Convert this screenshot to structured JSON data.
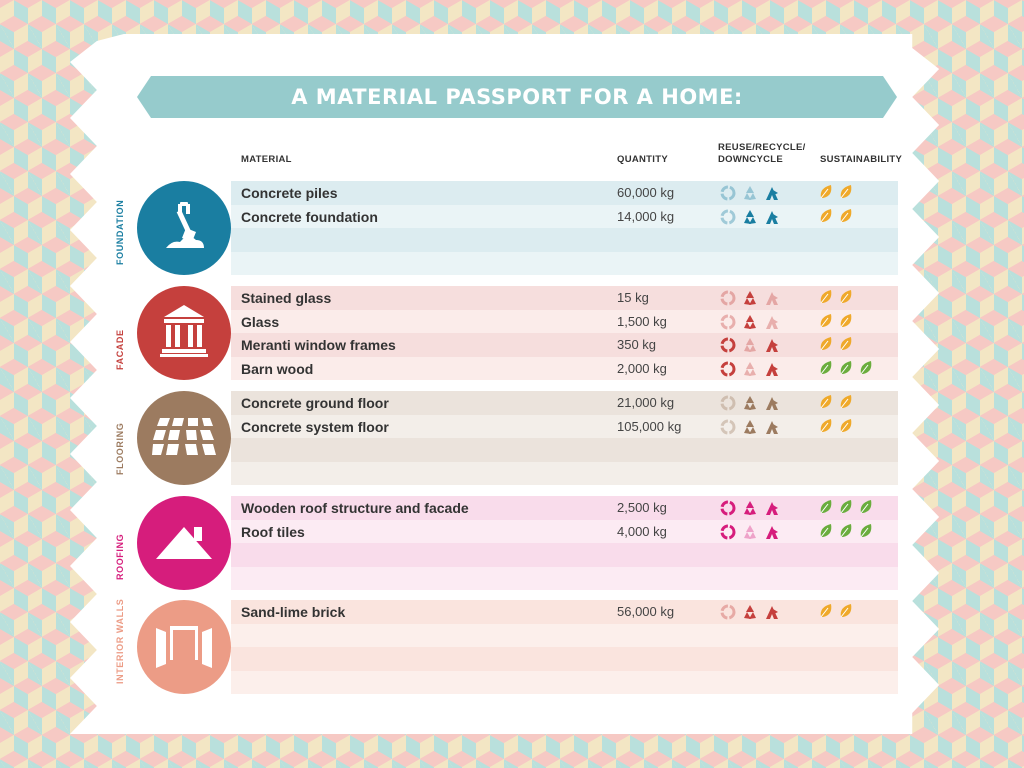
{
  "title": "A MATERIAL PASSPORT FOR A HOME:",
  "columns": {
    "material": "MATERIAL",
    "quantity": "QUANTITY",
    "recycle_line1": "REUSE/RECYCLE/",
    "recycle_line2": "DOWNCYCLE",
    "sustainability": "SUSTAINABILITY"
  },
  "sections": [
    {
      "label": "FOUNDATION",
      "icon": "shovel-icon",
      "color": "#1a7ea1",
      "row_dark": "#dcecf0",
      "row_light": "#eaf4f6",
      "rows": [
        {
          "material": "Concrete piles",
          "quantity": "60,000 kg",
          "recycle": [
            0.35,
            0.35,
            1
          ],
          "leaves": 2
        },
        {
          "material": "Concrete foundation",
          "quantity": "14,000 kg",
          "recycle": [
            0.35,
            1,
            1
          ],
          "leaves": 2
        },
        {
          "material": "",
          "quantity": "",
          "recycle": [],
          "leaves": 0
        },
        {
          "material": "",
          "quantity": "",
          "recycle": [],
          "leaves": 0
        }
      ]
    },
    {
      "label": "FACADE",
      "icon": "building-icon",
      "color": "#c5403d",
      "row_dark": "#f6dedd",
      "row_light": "#fbecea",
      "rows": [
        {
          "material": "Stained glass",
          "quantity": "15 kg",
          "recycle": [
            0.35,
            1,
            0.35
          ],
          "leaves": 2
        },
        {
          "material": "Glass",
          "quantity": "1,500 kg",
          "recycle": [
            0.35,
            1,
            0.35
          ],
          "leaves": 2
        },
        {
          "material": "Meranti window frames",
          "quantity": "350 kg",
          "recycle": [
            1,
            0.35,
            1
          ],
          "leaves": 2
        },
        {
          "material": "Barn wood",
          "quantity": "2,000 kg",
          "recycle": [
            1,
            0.35,
            1
          ],
          "leaves": 3
        }
      ]
    },
    {
      "label": "FLOORING",
      "icon": "floor-tiles-icon",
      "color": "#9c7b60",
      "row_dark": "#ebe3dc",
      "row_light": "#f3eee9",
      "rows": [
        {
          "material": "Concrete ground floor",
          "quantity": "21,000 kg",
          "recycle": [
            0.35,
            1,
            1
          ],
          "leaves": 2
        },
        {
          "material": "Concrete system floor",
          "quantity": "105,000 kg",
          "recycle": [
            0.35,
            1,
            1
          ],
          "leaves": 2
        },
        {
          "material": "",
          "quantity": "",
          "recycle": [],
          "leaves": 0
        },
        {
          "material": "",
          "quantity": "",
          "recycle": [],
          "leaves": 0
        }
      ]
    },
    {
      "label": "ROOFING",
      "icon": "roof-icon",
      "color": "#d61d7c",
      "row_dark": "#f9dceb",
      "row_light": "#fcebf3",
      "rows": [
        {
          "material": "Wooden roof structure and facade",
          "quantity": "2,500 kg",
          "recycle": [
            1,
            1,
            1
          ],
          "leaves": 3
        },
        {
          "material": "Roof tiles",
          "quantity": "4,000 kg",
          "recycle": [
            1,
            0.35,
            1
          ],
          "leaves": 3
        },
        {
          "material": "",
          "quantity": "",
          "recycle": [],
          "leaves": 0
        },
        {
          "material": "",
          "quantity": "",
          "recycle": [],
          "leaves": 0
        }
      ]
    },
    {
      "label": "INTERIOR WALLS",
      "icon": "interior-walls-icon",
      "color": "#ec9c86",
      "text_color": "#ec9c86",
      "row_dark": "#fae4de",
      "row_light": "#fcefeb",
      "rows": [
        {
          "material": "Sand-lime brick",
          "quantity": "56,000 kg",
          "recycle": [
            0.35,
            1,
            1
          ],
          "leaves": 2,
          "recycle_color": "#c5403d"
        },
        {
          "material": "",
          "quantity": "",
          "recycle": [],
          "leaves": 0
        },
        {
          "material": "",
          "quantity": "",
          "recycle": [],
          "leaves": 0
        },
        {
          "material": "",
          "quantity": "",
          "recycle": [],
          "leaves": 0
        }
      ]
    }
  ],
  "leaf_colors": {
    "two": "#efa92a",
    "three": "#6aad3d"
  }
}
